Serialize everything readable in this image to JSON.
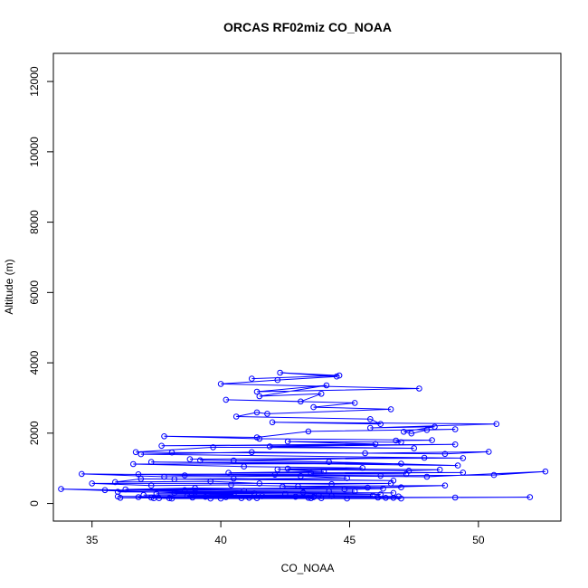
{
  "chart_data": {
    "type": "line",
    "title": "ORCAS RF02miz CO_NOAA",
    "xlabel": "CO_NOAA",
    "ylabel": "Altitude (m)",
    "xlim": [
      33.5,
      53.2
    ],
    "ylim": [
      -500,
      12800
    ],
    "x_ticks": [
      "35",
      "40",
      "45",
      "50"
    ],
    "y_ticks": [
      "0",
      "2000",
      "4000",
      "6000",
      "8000",
      "10000",
      "12000"
    ],
    "grid": false,
    "legend": "none",
    "series": [
      {
        "marker": "open-circle",
        "color": "#0000ff",
        "x": [
          41.2,
          44.6,
          42.3,
          44.5,
          42.2,
          40.0,
          47.7,
          41.4,
          44.1,
          41.5,
          43.9,
          43.1,
          40.2,
          45.2,
          43.6,
          46.6,
          41.8,
          41.4,
          40.6,
          45.8,
          46.2,
          42.0,
          50.7,
          45.8,
          48.3,
          47.1,
          47.4,
          48.0,
          49.1,
          43.4,
          41.4,
          37.8,
          41.5,
          48.2,
          46.8,
          47.0,
          42.6,
          46.0,
          37.7,
          49.1,
          41.9,
          47.5,
          39.7,
          36.7,
          38.1,
          45.6,
          50.4,
          48.7,
          41.2,
          36.9,
          49.4,
          38.8,
          47.9,
          40.5,
          39.2,
          44.2,
          49.2,
          37.3,
          47.0,
          36.6,
          40.9,
          45.5,
          42.6,
          48.5,
          47.3,
          42.2,
          44.0,
          40.3,
          49.4,
          43.5,
          47.2,
          36.8,
          38.6,
          42.1,
          46.2,
          50.6,
          52.6,
          48.0,
          34.6,
          37.8,
          43.1,
          44.9,
          38.2,
          40.5,
          46.7,
          36.9,
          35.9,
          39.6,
          41.5,
          44.3,
          46.6,
          35.0,
          37.3,
          40.4,
          43.0,
          48.7,
          45.7,
          42.4,
          47.0,
          36.3,
          39.0,
          44.8,
          46.3,
          35.5,
          38.6,
          40.9,
          45.2,
          44.2,
          36.0,
          39.0,
          43.2,
          46.7,
          38.2,
          41.3,
          37.5,
          42.5,
          46.2,
          33.8,
          40.5,
          37.0,
          43.8,
          45.9,
          38.7,
          41.6,
          44.3,
          46.9,
          36.0,
          39.4,
          42.9,
          36.8,
          40.2,
          43.6,
          37.3,
          46.1,
          38.9,
          41.1,
          43.4,
          46.7,
          38.0,
          40.8,
          43.9,
          37.6,
          44.9,
          47.0,
          40.0,
          36.1,
          52.0,
          49.1,
          46.4,
          43.5,
          41.4,
          39.6,
          38.1,
          37.4
        ],
        "y": [
          3550,
          3640,
          3720,
          3610,
          3510,
          3400,
          3270,
          3180,
          3360,
          3050,
          3120,
          2900,
          2950,
          2860,
          2740,
          2680,
          2550,
          2590,
          2470,
          2400,
          2260,
          2310,
          2260,
          2150,
          2180,
          2040,
          1990,
          2090,
          2110,
          2050,
          1880,
          1910,
          1840,
          1800,
          1790,
          1740,
          1760,
          1690,
          1640,
          1680,
          1620,
          1570,
          1600,
          1460,
          1450,
          1430,
          1470,
          1410,
          1460,
          1400,
          1290,
          1260,
          1300,
          1220,
          1230,
          1180,
          1080,
          1180,
          1130,
          1120,
          1050,
          1010,
          990,
          960,
          930,
          970,
          910,
          870,
          880,
          860,
          840,
          830,
          800,
          820,
          790,
          810,
          910,
          760,
          840,
          760,
          780,
          720,
          690,
          710,
          650,
          700,
          610,
          630,
          570,
          550,
          570,
          570,
          510,
          530,
          490,
          510,
          450,
          480,
          460,
          400,
          440,
          400,
          420,
          380,
          380,
          360,
          350,
          340,
          330,
          320,
          310,
          300,
          300,
          290,
          280,
          270,
          260,
          410,
          250,
          240,
          230,
          220,
          220,
          210,
          210,
          200,
          200,
          190,
          190,
          180,
          180,
          180,
          170,
          170,
          170,
          160,
          160,
          160,
          150,
          150,
          150,
          150,
          140,
          140,
          140,
          160,
          180,
          170,
          160,
          150,
          150,
          140,
          140,
          150
        ]
      }
    ]
  }
}
